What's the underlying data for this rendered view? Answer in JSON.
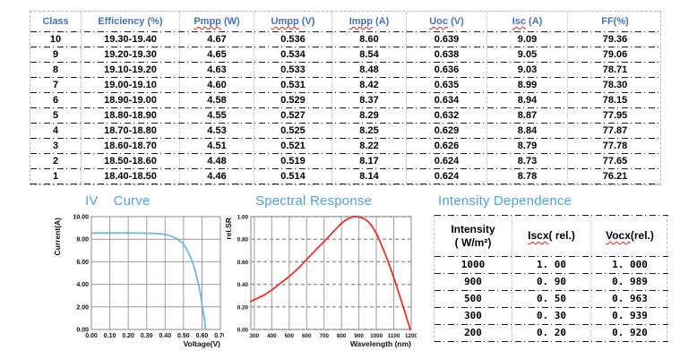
{
  "colors": {
    "header_blue": "#4472b8",
    "title_blue": "#54a0d8",
    "iv_curve_blue": "#72b5e2",
    "spectral_red": "#e63229",
    "grid_gray": "#9c9c9c",
    "separator_black": "#1c1c1c",
    "column_sep_gray": "#c9c9c9"
  },
  "main_table": {
    "headers": [
      {
        "word": "Class",
        "unit": "",
        "squiggle": false
      },
      {
        "word": "Efficiency",
        "unit": " (%)",
        "squiggle": false
      },
      {
        "word": "Pmpp",
        "unit": " (W)",
        "squiggle": true
      },
      {
        "word": "Umpp",
        "unit": " (V)",
        "squiggle": true
      },
      {
        "word": "Impp",
        "unit": " (A)",
        "squiggle": true
      },
      {
        "word": "Uoc",
        "unit": " (V)",
        "squiggle": true
      },
      {
        "word": "Isc",
        "unit": " (A)",
        "squiggle": true
      },
      {
        "word": "FF",
        "unit": "(%)",
        "squiggle": false
      }
    ],
    "rows": [
      [
        "10",
        "19.30-19.40",
        "4.67",
        "0.536",
        "8.60",
        "0.639",
        "9.09",
        "79.36"
      ],
      [
        "9",
        "19.20-19.30",
        "4.65",
        "0.534",
        "8.54",
        "0.638",
        "9.05",
        "79.06"
      ],
      [
        "8",
        "19.10-19.20",
        "4.63",
        "0.533",
        "8.48",
        "0.636",
        "9.03",
        "78.71"
      ],
      [
        "7",
        "19.00-19.10",
        "4.60",
        "0.531",
        "8.42",
        "0.635",
        "8.99",
        "78.30"
      ],
      [
        "6",
        "18.90-19.00",
        "4.58",
        "0.529",
        "8.37",
        "0.634",
        "8.94",
        "78.15"
      ],
      [
        "5",
        "18.80-18.90",
        "4.55",
        "0.527",
        "8.29",
        "0.632",
        "8.87",
        "77.95"
      ],
      [
        "4",
        "18.70-18.80",
        "4.53",
        "0.525",
        "8.25",
        "0.629",
        "8.84",
        "77.87"
      ],
      [
        "3",
        "18.60-18.70",
        "4.51",
        "0.521",
        "8.22",
        "0.626",
        "8.79",
        "77.78"
      ],
      [
        "2",
        "18.50-18.60",
        "4.48",
        "0.519",
        "8.17",
        "0.624",
        "8.73",
        "77.65"
      ],
      [
        "1",
        "18.40-18.50",
        "4.46",
        "0.514",
        "8.14",
        "0.624",
        "8.78",
        "76.21"
      ]
    ]
  },
  "sections": {
    "iv_prefix": "IV",
    "iv_word": "Curve",
    "spectral_title": "Spectral Response",
    "intensity_title": "Intensity Dependence"
  },
  "chart_data": [
    {
      "type": "line",
      "title": "IV Curve",
      "xlabel": "Voltage(V)",
      "ylabel": "Current(A)",
      "xlim": [
        0,
        0.7
      ],
      "ylim": [
        0,
        10
      ],
      "grid": "on",
      "legend": "none",
      "xticks": [
        0.0,
        0.1,
        0.2,
        0.3,
        0.4,
        0.5,
        0.6,
        0.7
      ],
      "xtick_labels": [
        "0.00",
        "0.10",
        "0.20",
        "0.30",
        "0.40",
        "0.50",
        "0.60",
        "0.70"
      ],
      "yticks": [
        0,
        2,
        4,
        6,
        8,
        10
      ],
      "ytick_labels": [
        "0.00",
        "2.00",
        "4.00",
        "6.00",
        "8.00",
        "10.00"
      ],
      "x": [
        0.0,
        0.1,
        0.2,
        0.3,
        0.35,
        0.4,
        0.45,
        0.48,
        0.5,
        0.53,
        0.55,
        0.57,
        0.59,
        0.6,
        0.61,
        0.62
      ],
      "y": [
        8.55,
        8.55,
        8.55,
        8.53,
        8.5,
        8.42,
        8.15,
        7.85,
        7.55,
        6.7,
        5.9,
        4.8,
        3.3,
        2.3,
        1.2,
        0.0
      ],
      "line_color": "#72b5e2"
    },
    {
      "type": "line",
      "title": "Spectral Response",
      "xlabel": "Wavelength (nm)",
      "ylabel": "rel.SR",
      "xlim": [
        280,
        1200
      ],
      "ylim": [
        0,
        1
      ],
      "grid": "on",
      "legend": "none",
      "xticks": [
        300,
        400,
        500,
        600,
        700,
        800,
        900,
        1000,
        1100,
        1200
      ],
      "xtick_labels": [
        "300",
        "400",
        "500",
        "600",
        "700",
        "800",
        "900",
        "1000",
        "1100",
        "1200"
      ],
      "yticks": [
        0,
        0.2,
        0.4,
        0.6,
        0.8,
        1.0
      ],
      "ytick_labels": [
        "0.00",
        "0.20",
        "0.40",
        "0.60",
        "0.80",
        "1.00"
      ],
      "x": [
        280,
        350,
        400,
        450,
        500,
        550,
        600,
        650,
        700,
        750,
        800,
        850,
        890,
        950,
        1000,
        1050,
        1100,
        1150,
        1195
      ],
      "y": [
        0.25,
        0.3,
        0.35,
        0.41,
        0.47,
        0.54,
        0.62,
        0.7,
        0.78,
        0.86,
        0.94,
        0.99,
        1.0,
        0.96,
        0.85,
        0.67,
        0.46,
        0.22,
        0.0
      ],
      "line_color": "#e63229"
    }
  ],
  "intensity_table": {
    "headers": [
      {
        "line1": "Intensity",
        "line2": "( W/m²)",
        "squiggle": false
      },
      {
        "word": "Iscx",
        "rest": "( rel.)",
        "squiggle": true
      },
      {
        "word": "Vocx",
        "rest": "(rel.)",
        "squiggle": true
      }
    ],
    "rows": [
      [
        "1000",
        "1. 00",
        "1. 000"
      ],
      [
        "900",
        "0. 90",
        "0. 989"
      ],
      [
        "500",
        "0. 50",
        "0. 963"
      ],
      [
        "300",
        "0. 30",
        "0. 939"
      ],
      [
        "200",
        "0. 20",
        "0. 920"
      ]
    ]
  }
}
